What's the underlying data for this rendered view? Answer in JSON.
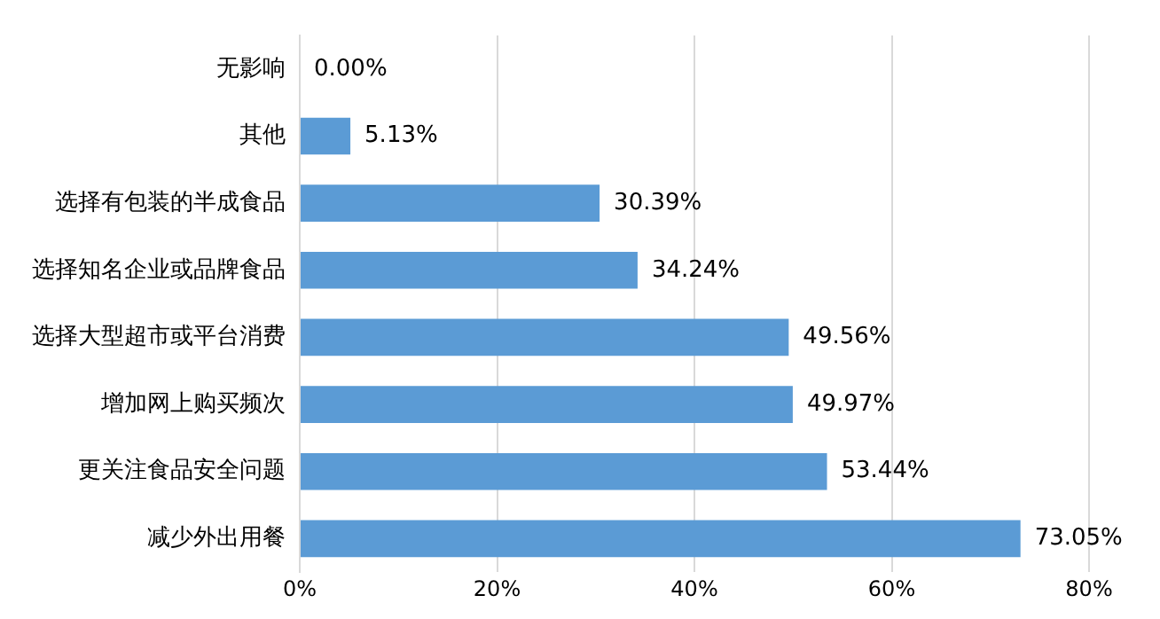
{
  "chart_data": {
    "type": "bar",
    "orientation": "horizontal",
    "categories": [
      "无影响",
      "其他",
      "选择有包装的半成食品",
      "选择知名企业或品牌食品",
      "选择大型超市或平台消费",
      "增加网上购买频次",
      "更关注食品安全问题",
      "减少外出用餐"
    ],
    "values": [
      0,
      5.13,
      30.39,
      34.24,
      49.56,
      49.97,
      53.44,
      73.05
    ],
    "value_labels": [
      "0.00%",
      "5.13%",
      "30.39%",
      "34.24%",
      "49.56%",
      "49.97%",
      "53.44%",
      "73.05%"
    ],
    "color": "#5b9bd5",
    "xlim": [
      0,
      80
    ],
    "xticks": [
      {
        "value": 0,
        "label": "0%"
      },
      {
        "value": 20,
        "label": "20%"
      },
      {
        "value": 40,
        "label": "40%"
      },
      {
        "value": 60,
        "label": "60%"
      },
      {
        "value": 80,
        "label": "80%"
      }
    ],
    "grid": "x",
    "legend": false
  }
}
